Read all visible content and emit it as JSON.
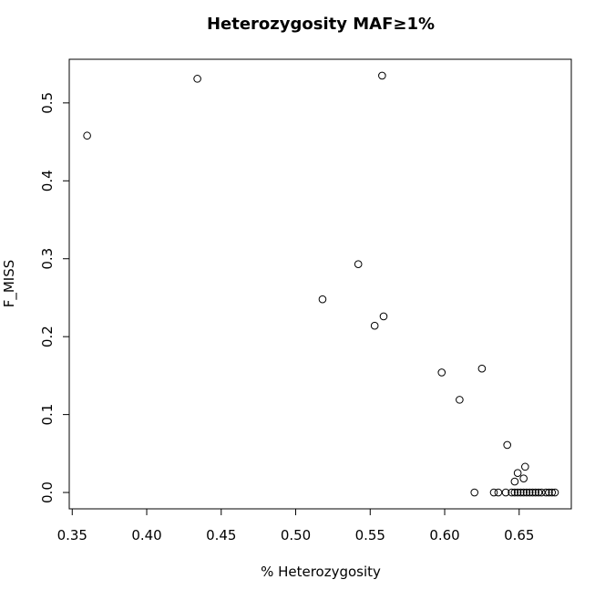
{
  "chart_data": {
    "type": "scatter",
    "title": "Heterozygosity MAF≥1%",
    "xlabel": "% Heterozygosity",
    "ylabel": "F_MISS",
    "xlim": [
      0.348,
      0.685
    ],
    "ylim": [
      -0.021,
      0.556
    ],
    "xticks": [
      0.35,
      0.4,
      0.45,
      0.5,
      0.55,
      0.6,
      0.65
    ],
    "xtick_labels": [
      "0.35",
      "0.40",
      "0.45",
      "0.50",
      "0.55",
      "0.60",
      "0.65"
    ],
    "yticks": [
      0.0,
      0.1,
      0.2,
      0.3,
      0.4,
      0.5
    ],
    "ytick_labels": [
      "0.0",
      "0.1",
      "0.2",
      "0.3",
      "0.4",
      "0.5"
    ],
    "grid": false,
    "legend": "none",
    "marker": "open-circle",
    "points": [
      [
        0.36,
        0.458
      ],
      [
        0.434,
        0.531
      ],
      [
        0.558,
        0.535
      ],
      [
        0.542,
        0.293
      ],
      [
        0.518,
        0.248
      ],
      [
        0.559,
        0.226
      ],
      [
        0.553,
        0.214
      ],
      [
        0.598,
        0.154
      ],
      [
        0.625,
        0.159
      ],
      [
        0.61,
        0.119
      ],
      [
        0.642,
        0.061
      ],
      [
        0.649,
        0.025
      ],
      [
        0.654,
        0.033
      ],
      [
        0.647,
        0.014
      ],
      [
        0.653,
        0.018
      ],
      [
        0.62,
        0.0
      ],
      [
        0.633,
        0.0
      ],
      [
        0.636,
        0.0
      ],
      [
        0.641,
        0.0
      ],
      [
        0.645,
        0.0
      ],
      [
        0.647,
        0.0
      ],
      [
        0.649,
        0.0
      ],
      [
        0.651,
        0.0
      ],
      [
        0.653,
        0.0
      ],
      [
        0.655,
        0.0
      ],
      [
        0.657,
        0.0
      ],
      [
        0.659,
        0.0
      ],
      [
        0.661,
        0.0
      ],
      [
        0.663,
        0.0
      ],
      [
        0.665,
        0.0
      ],
      [
        0.668,
        0.0
      ],
      [
        0.67,
        0.0
      ],
      [
        0.672,
        0.0
      ],
      [
        0.674,
        0.0
      ]
    ]
  }
}
